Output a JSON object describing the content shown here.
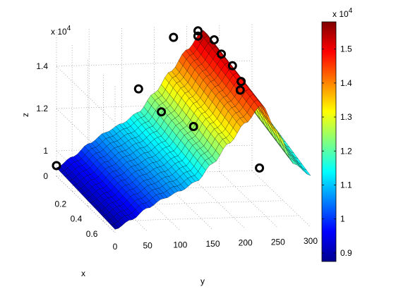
{
  "chart_data": {
    "type": "surface",
    "xlabel": "x",
    "ylabel": "y",
    "zlabel": "z",
    "x_ticks": [
      "0.2",
      "0.4",
      "0.6"
    ],
    "y_ticks": [
      "0",
      "50",
      "100",
      "150",
      "200",
      "250",
      "300"
    ],
    "z_ticks": [
      "0",
      "1",
      "1.2",
      "1.4"
    ],
    "z_exponent_base": "x 10",
    "z_exponent_power": "4",
    "colorbar_ticks": [
      "0.9",
      "1",
      "1.1",
      "1.2",
      "1.3",
      "1.4",
      "1.5"
    ],
    "colorbar_exponent_base": "x 10",
    "colorbar_exponent_power": "4",
    "xlim": [
      0,
      0.75
    ],
    "ylim": [
      0,
      300
    ],
    "zlim": [
      8800,
      15800
    ],
    "clim": [
      8750,
      15800
    ],
    "colormap": "jet",
    "grid": true,
    "surface_profile_y": [
      0,
      25,
      50,
      75,
      100,
      125,
      150,
      175,
      200,
      225,
      250,
      275,
      300
    ],
    "surface_profile_z": [
      9200,
      9700,
      10300,
      10800,
      11200,
      11700,
      12600,
      13600,
      14600,
      15500,
      14200,
      12800,
      12300
    ],
    "scatter_points": [
      {
        "x": 0.0,
        "y": 0,
        "z": 9300
      },
      {
        "x": 0.05,
        "y": 120,
        "z": 13000
      },
      {
        "x": 0.08,
        "y": 170,
        "z": 15500
      },
      {
        "x": 0.1,
        "y": 205,
        "z": 15600
      },
      {
        "x": 0.06,
        "y": 210,
        "z": 15700
      },
      {
        "x": 0.1,
        "y": 230,
        "z": 15400
      },
      {
        "x": 0.15,
        "y": 235,
        "z": 14900
      },
      {
        "x": 0.25,
        "y": 240,
        "z": 14700
      },
      {
        "x": 0.32,
        "y": 245,
        "z": 14200
      },
      {
        "x": 0.35,
        "y": 240,
        "z": 13900
      },
      {
        "x": 0.3,
        "y": 125,
        "z": 12800
      },
      {
        "x": 0.42,
        "y": 160,
        "z": 12500
      },
      {
        "x": 0.68,
        "y": 230,
        "z": 11400
      }
    ]
  }
}
